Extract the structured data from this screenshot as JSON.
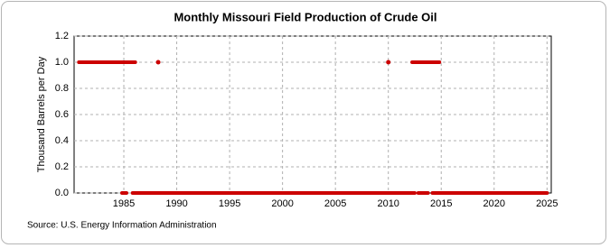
{
  "chart_data": {
    "type": "line",
    "title": "Monthly Missouri Field Production of Crude Oil",
    "y_label": "Thousand Barrels per Day",
    "source": "Source: U.S. Energy Information Administration",
    "color": "#cc0000",
    "grid": true,
    "xlim": [
      1980.3,
      2025.4
    ],
    "xticks": [
      1985,
      1990,
      1995,
      2000,
      2005,
      2010,
      2015,
      2020,
      2025
    ],
    "ylim": [
      0,
      1.2
    ],
    "yticks": [
      {
        "value": 0,
        "label": "0.0"
      },
      0.2,
      0.4,
      0.6,
      0.8,
      {
        "value": 1,
        "label": "1.0"
      },
      1.2
    ],
    "series": [
      {
        "x": [
          1980.75,
          1986.08
        ],
        "values": [
          1,
          1
        ]
      },
      {
        "x": [
          1988.25
        ],
        "values": [
          1
        ]
      },
      {
        "x": [
          2010.0
        ],
        "values": [
          1
        ]
      },
      {
        "x": [
          2012.25,
          2014.83
        ],
        "values": [
          1,
          1
        ]
      },
      {
        "x": [
          1984.83,
          1985.25
        ],
        "values": [
          0,
          0
        ]
      },
      {
        "x": [
          1985.83,
          2012.5
        ],
        "values": [
          0,
          0
        ]
      },
      {
        "x": [
          2012.83,
          2013.75
        ],
        "values": [
          0,
          0
        ]
      },
      {
        "x": [
          2014.17,
          2025.0
        ],
        "values": [
          0,
          0
        ]
      }
    ]
  }
}
